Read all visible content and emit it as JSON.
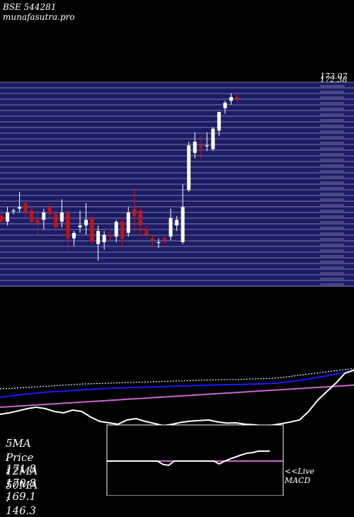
{
  "header": {
    "title": "BSE 544281 munafasutra.pro"
  },
  "chart_data": [
    {
      "type": "candlestick",
      "title": "BSE 544281 munafasutra.pro",
      "price_scale": [
        130,
        185
      ],
      "candles": [
        {
          "o": 149.0,
          "h": 150.5,
          "l": 147.0,
          "c": 147.5
        },
        {
          "o": 147.5,
          "h": 151.5,
          "l": 146.5,
          "c": 150.0
        },
        {
          "o": 150.5,
          "h": 151.0,
          "l": 149.5,
          "c": 150.5
        },
        {
          "o": 151.0,
          "h": 155.5,
          "l": 150.0,
          "c": 151.5
        },
        {
          "o": 152.5,
          "h": 153.0,
          "l": 148.5,
          "c": 150.0
        },
        {
          "o": 150.5,
          "h": 151.5,
          "l": 146.5,
          "c": 147.5
        },
        {
          "o": 148.0,
          "h": 150.5,
          "l": 144.0,
          "c": 147.0
        },
        {
          "o": 148.0,
          "h": 151.0,
          "l": 145.5,
          "c": 150.0
        },
        {
          "o": 151.5,
          "h": 152.5,
          "l": 148.5,
          "c": 149.5
        },
        {
          "o": 149.5,
          "h": 150.5,
          "l": 144.5,
          "c": 146.0
        },
        {
          "o": 147.5,
          "h": 153.5,
          "l": 146.0,
          "c": 150.0
        },
        {
          "o": 150.0,
          "h": 150.5,
          "l": 140.0,
          "c": 143.0
        },
        {
          "o": 143.0,
          "h": 145.0,
          "l": 141.0,
          "c": 144.5
        },
        {
          "o": 146.0,
          "h": 150.5,
          "l": 144.5,
          "c": 146.5
        },
        {
          "o": 146.5,
          "h": 152.5,
          "l": 144.0,
          "c": 148.0
        },
        {
          "o": 148.5,
          "h": 149.0,
          "l": 141.5,
          "c": 142.0
        },
        {
          "o": 141.5,
          "h": 146.5,
          "l": 137.0,
          "c": 145.0
        },
        {
          "o": 142.0,
          "h": 145.0,
          "l": 140.0,
          "c": 144.0
        },
        {
          "o": 144.0,
          "h": 145.0,
          "l": 142.5,
          "c": 143.5
        },
        {
          "o": 143.5,
          "h": 148.0,
          "l": 142.0,
          "c": 147.5
        },
        {
          "o": 147.5,
          "h": 148.5,
          "l": 141.0,
          "c": 143.0
        },
        {
          "o": 144.5,
          "h": 151.5,
          "l": 143.5,
          "c": 150.0
        },
        {
          "o": 151.0,
          "h": 156.5,
          "l": 145.0,
          "c": 149.0
        },
        {
          "o": 150.5,
          "h": 151.5,
          "l": 143.5,
          "c": 146.5
        },
        {
          "o": 145.5,
          "h": 146.5,
          "l": 143.0,
          "c": 144.0
        },
        {
          "o": 143.0,
          "h": 144.0,
          "l": 141.0,
          "c": 142.5
        },
        {
          "o": 142.0,
          "h": 143.0,
          "l": 140.5,
          "c": 142.0
        },
        {
          "o": 143.0,
          "h": 143.5,
          "l": 141.5,
          "c": 142.5
        },
        {
          "o": 143.5,
          "h": 151.0,
          "l": 142.5,
          "c": 148.5
        },
        {
          "o": 146.5,
          "h": 149.0,
          "l": 145.0,
          "c": 148.0
        },
        {
          "o": 142.0,
          "h": 157.5,
          "l": 141.5,
          "c": 151.5
        },
        {
          "o": 156.0,
          "h": 169.0,
          "l": 155.5,
          "c": 168.0
        },
        {
          "o": 166.0,
          "h": 171.5,
          "l": 164.5,
          "c": 169.0
        },
        {
          "o": 168.0,
          "h": 170.5,
          "l": 164.5,
          "c": 167.5
        },
        {
          "o": 168.0,
          "h": 171.5,
          "l": 166.5,
          "c": 168.0
        },
        {
          "o": 167.0,
          "h": 173.0,
          "l": 166.5,
          "c": 172.5
        },
        {
          "o": 172.0,
          "h": 177.0,
          "l": 170.5,
          "c": 177.0
        },
        {
          "o": 178.0,
          "h": 180.0,
          "l": 176.5,
          "c": 179.5
        },
        {
          "o": 180.0,
          "h": 182.0,
          "l": 179.0,
          "c": 181.0
        },
        {
          "o": 181.0,
          "h": 182.5,
          "l": 179.5,
          "c": 180.5
        }
      ],
      "price_tick_labels": [
        "173.07",
        "172.38"
      ]
    },
    {
      "type": "line",
      "series": [
        {
          "color": "#ffffff",
          "style": "dotted",
          "values": [
            149.0,
            149.1,
            149.3,
            149.5,
            149.7,
            149.9,
            150.1,
            150.3,
            150.5,
            150.7,
            150.8,
            150.9,
            151.0,
            151.1,
            151.2,
            151.3,
            151.4,
            151.5,
            151.6,
            151.7,
            151.8,
            151.9,
            152.0,
            152.1,
            152.2,
            152.3,
            152.3,
            152.4,
            152.5,
            152.6,
            152.7,
            153.0,
            153.4,
            153.8,
            154.2,
            154.6,
            155.0,
            155.4,
            155.8,
            156.1
          ]
        },
        {
          "color": "#1a1aff",
          "style": "solid",
          "values": [
            146.0,
            146.4,
            146.8,
            147.2,
            147.5,
            147.8,
            148.0,
            148.2,
            148.4,
            148.6,
            148.8,
            149.0,
            149.2,
            149.3,
            149.4,
            149.5,
            149.6,
            149.7,
            149.8,
            149.9,
            150.0,
            150.1,
            150.2,
            150.3,
            150.4,
            150.5,
            150.5,
            150.6,
            150.7,
            150.8,
            150.9,
            151.2,
            151.6,
            152.0,
            152.5,
            153.0,
            153.6,
            154.2,
            154.8,
            155.4
          ]
        },
        {
          "color": "#cc66cc",
          "style": "solid",
          "values": [
            142.5,
            142.7,
            142.9,
            143.1,
            143.3,
            143.5,
            143.7,
            143.9,
            144.1,
            144.3,
            144.5,
            144.7,
            144.9,
            145.1,
            145.3,
            145.5,
            145.7,
            145.9,
            146.1,
            146.3,
            146.5,
            146.7,
            146.9,
            147.1,
            147.3,
            147.5,
            147.7,
            147.9,
            148.1,
            148.3,
            148.5,
            148.7,
            148.9,
            149.1,
            149.3,
            149.5,
            149.7,
            149.9,
            150.1,
            150.3
          ]
        },
        {
          "color": "#ffffff",
          "style": "solid",
          "values": [
            140.0,
            140.5,
            141.2,
            142.0,
            142.5,
            142.0,
            141.0,
            140.5,
            141.5,
            141.0,
            139.0,
            137.5,
            137.0,
            136.5,
            138.0,
            138.5,
            137.5,
            136.8,
            136.0,
            136.5,
            137.2,
            137.6,
            137.8,
            138.0,
            137.3,
            136.9,
            137.0,
            136.5,
            136.3,
            136.0,
            136.2,
            136.7,
            137.3,
            138.0,
            141.0,
            145.0,
            148.0,
            151.0,
            154.5,
            155.6
          ]
        }
      ]
    },
    {
      "type": "line",
      "title": "MACD",
      "macd": [
        0.0,
        0.0,
        0.0,
        0.0,
        0.0,
        0.0,
        0.0,
        0.0,
        0.0,
        0.0,
        -1.2,
        -1.5,
        0.0,
        0.0,
        0.0,
        0.0,
        0.0,
        0.0,
        0.0,
        0.0,
        -1.0,
        0.0,
        0.8,
        1.5,
        2.2,
        2.8,
        3.0,
        3.5,
        3.5,
        3.5
      ],
      "signal_level": 0.0
    }
  ],
  "stats": {
    "ma5": "5MA : 171.8",
    "price": "Price  : 170.8",
    "ma12": "12MA : 169.1",
    "ma50": "50MA : 146.3"
  },
  "macd_panel": {
    "live_label": "<<Live",
    "macd_label": "MACD"
  },
  "colors": {
    "background": "#000000",
    "price_panel": "#1c1c66",
    "grid": "#ffffff",
    "candle_up": "#ffffff",
    "candle_down": "#cc1111",
    "ma_blue": "#1a1aff",
    "ma_pink": "#cc66cc",
    "macd_zero": "#cc66cc"
  }
}
